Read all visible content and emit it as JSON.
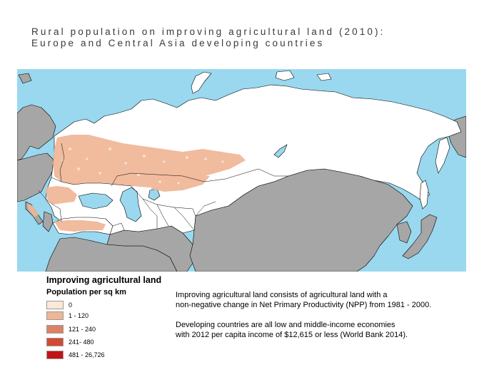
{
  "title": {
    "line1": "Rural population on improving agricultural land (2010):",
    "line2": "Europe and Central Asia developing countries"
  },
  "legend": {
    "title": "Improving agricultural land",
    "subtitle": "Population per sq km",
    "classes": [
      {
        "label": "0",
        "color": "#fde8d8"
      },
      {
        "label": "1 - 120",
        "color": "#efb594"
      },
      {
        "label": "121 - 240",
        "color": "#de8266"
      },
      {
        "label": "241- 480",
        "color": "#d24a32"
      },
      {
        "label": "481 - 26,726",
        "color": "#c21317"
      }
    ]
  },
  "notes": {
    "p1_line1": "Improving agricultural land consists of agricultural land with a",
    "p1_line2": "non-negative change in Net Primary Productivity (NPP) from 1981 - 2000.",
    "p2_line1": "Developing countries are all low and middle-income economies",
    "p2_line2": "with 2012 per capita income of $12,615 or less (World Bank 2014)."
  },
  "map_colors": {
    "water": "#99d8ef",
    "other_land": "#a6a6a6",
    "developing_land": "#ffffff",
    "improving_land": "#f0b696",
    "border": "#000000"
  }
}
